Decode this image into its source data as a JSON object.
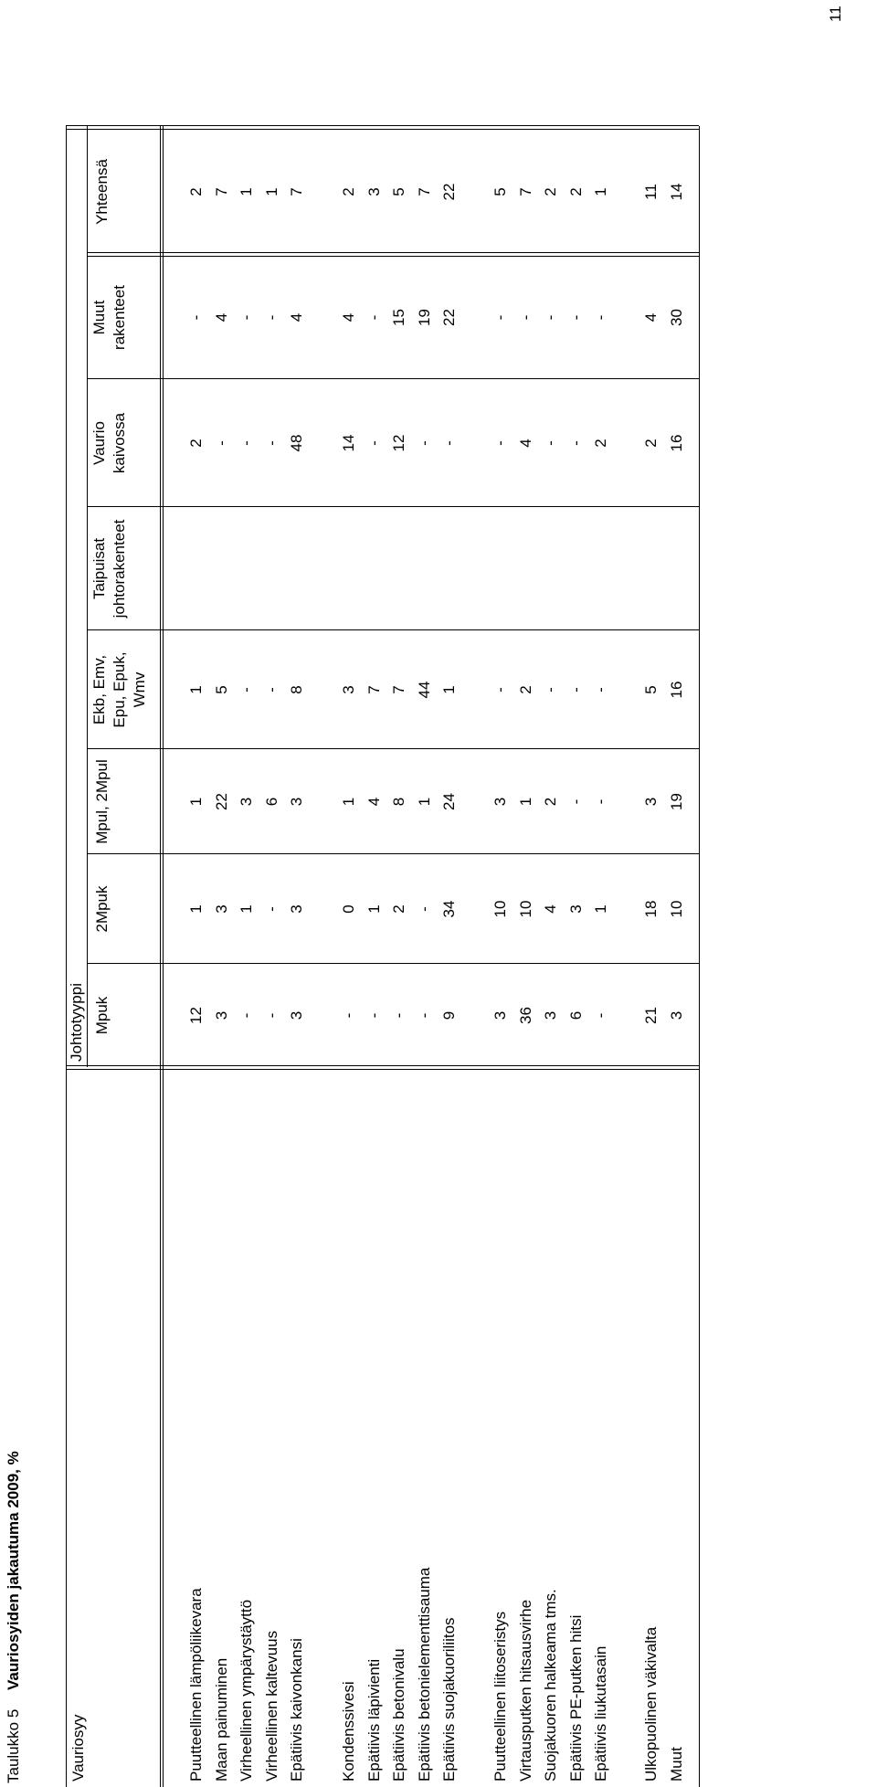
{
  "header": {
    "table_label": "Taulukko 5",
    "title": "Vauriosyiden jakautuma 2009, %",
    "page_number": 11
  },
  "table": {
    "row_header": "Vauriosyy",
    "column_group": "Johtotyyppi",
    "columns": [
      [
        "Mpuk"
      ],
      [
        "2Mpuk"
      ],
      [
        "Mpul, 2Mpul"
      ],
      [
        "Ekb, Emv,",
        "Epu, Epuk,",
        "Wmv"
      ],
      [
        "Taipuisat",
        "johtorakenteet"
      ],
      [
        "Vaurio",
        "kaivossa"
      ],
      [
        "Muut",
        "rakenteet"
      ],
      [
        "Yhteensä"
      ]
    ],
    "groups": [
      [
        [
          "Puutteellinen lämpöliikevara",
          12,
          1,
          1,
          1,
          null,
          2,
          "-",
          2
        ],
        [
          "Maan painuminen",
          3,
          3,
          22,
          5,
          null,
          "-",
          4,
          7
        ],
        [
          "Virheellinen ympärystäyttö",
          "-",
          1,
          3,
          "-",
          null,
          "-",
          "-",
          1
        ],
        [
          "Virheellinen kaltevuus",
          "-",
          "-",
          6,
          "-",
          null,
          "-",
          "-",
          1
        ],
        [
          "Epätiivis kaivonkansi",
          3,
          3,
          3,
          8,
          null,
          48,
          4,
          7
        ]
      ],
      [
        [
          "Kondenssivesi",
          "-",
          0,
          1,
          3,
          null,
          14,
          4,
          2
        ],
        [
          "Epätiivis läpivienti",
          "-",
          1,
          4,
          7,
          null,
          "-",
          "-",
          3
        ],
        [
          "Epätiivis betonivalu",
          "-",
          2,
          8,
          7,
          null,
          12,
          15,
          5
        ],
        [
          "Epätiivis betonielementtisauma",
          "-",
          "-",
          1,
          44,
          null,
          "-",
          19,
          7
        ],
        [
          "Epätiivis suojakuoriliitos",
          9,
          34,
          24,
          1,
          null,
          "-",
          22,
          22
        ]
      ],
      [
        [
          "Puutteellinen liitoseristys",
          3,
          10,
          3,
          "-",
          null,
          "-",
          "-",
          5
        ],
        [
          "Virtausputken hitsausvirhe",
          36,
          10,
          1,
          2,
          null,
          4,
          "-",
          7
        ],
        [
          "Suojakuoren halkeama tms.",
          3,
          4,
          2,
          "-",
          null,
          "-",
          "-",
          2
        ],
        [
          "Epätiivis PE-putken hitsi",
          6,
          3,
          "-",
          "-",
          null,
          "-",
          "-",
          2
        ],
        [
          "Epätiivis liukutasain",
          "-",
          1,
          "-",
          "-",
          null,
          2,
          "-",
          1
        ]
      ],
      [
        [
          "Ulkopuolinen väkivalta",
          21,
          18,
          3,
          5,
          null,
          2,
          4,
          11
        ],
        [
          "Muut",
          3,
          10,
          19,
          16,
          null,
          16,
          30,
          14
        ]
      ]
    ]
  }
}
